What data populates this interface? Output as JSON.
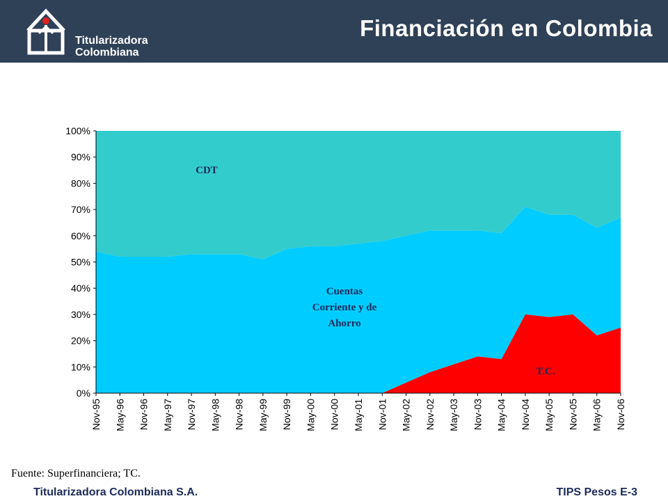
{
  "header": {
    "title": "Financiación en Colombia",
    "logo_line1": "Titularizadora",
    "logo_line2": "Colombiana"
  },
  "chart_data": {
    "type": "area",
    "stacked": true,
    "normalized_percent": true,
    "categories": [
      "Nov-95",
      "May-96",
      "Nov-96",
      "May-97",
      "Nov-97",
      "May-98",
      "Nov-98",
      "May-99",
      "Nov-99",
      "May-00",
      "Nov-00",
      "May-01",
      "Nov-01",
      "May-02",
      "Nov-02",
      "May-03",
      "Nov-03",
      "May-04",
      "Nov-04",
      "May-05",
      "Nov-05",
      "May-06",
      "Nov-06"
    ],
    "ylim": [
      0,
      100
    ],
    "yticks": [
      "0%",
      "10%",
      "20%",
      "30%",
      "40%",
      "50%",
      "60%",
      "70%",
      "80%",
      "90%",
      "100%"
    ],
    "xlabel": "",
    "ylabel": "",
    "grid": false,
    "legend": "none",
    "series": [
      {
        "name": "T.C.",
        "color": "#ff0000",
        "values": [
          0,
          0,
          0,
          0,
          0,
          0,
          0,
          0,
          0,
          0,
          0,
          0,
          0,
          4,
          8,
          11,
          14,
          13,
          30,
          29,
          30,
          22,
          25
        ]
      },
      {
        "name": "Cuentas Corriente y de Ahorro",
        "color": "#00ccff",
        "values": [
          54,
          52,
          52,
          52,
          53,
          53,
          53,
          51,
          55,
          56,
          56,
          57,
          58,
          56,
          54,
          51,
          48,
          48,
          41,
          39,
          38,
          41,
          42
        ]
      },
      {
        "name": "CDT",
        "color": "#33cccc",
        "values": [
          46,
          48,
          48,
          48,
          47,
          47,
          47,
          49,
          45,
          44,
          44,
          43,
          42,
          40,
          38,
          38,
          38,
          39,
          29,
          32,
          32,
          37,
          33
        ]
      }
    ],
    "labels": {
      "cdt": "CDT",
      "cuentas_l1": "Cuentas",
      "cuentas_l2": "Corriente y de",
      "cuentas_l3": "Ahorro",
      "tc": "T.C."
    }
  },
  "source": "Fuente: Superfinanciera; TC.",
  "footer": {
    "left": "Titularizadora Colombiana S.A.",
    "right": "TIPS Pesos E-3"
  }
}
